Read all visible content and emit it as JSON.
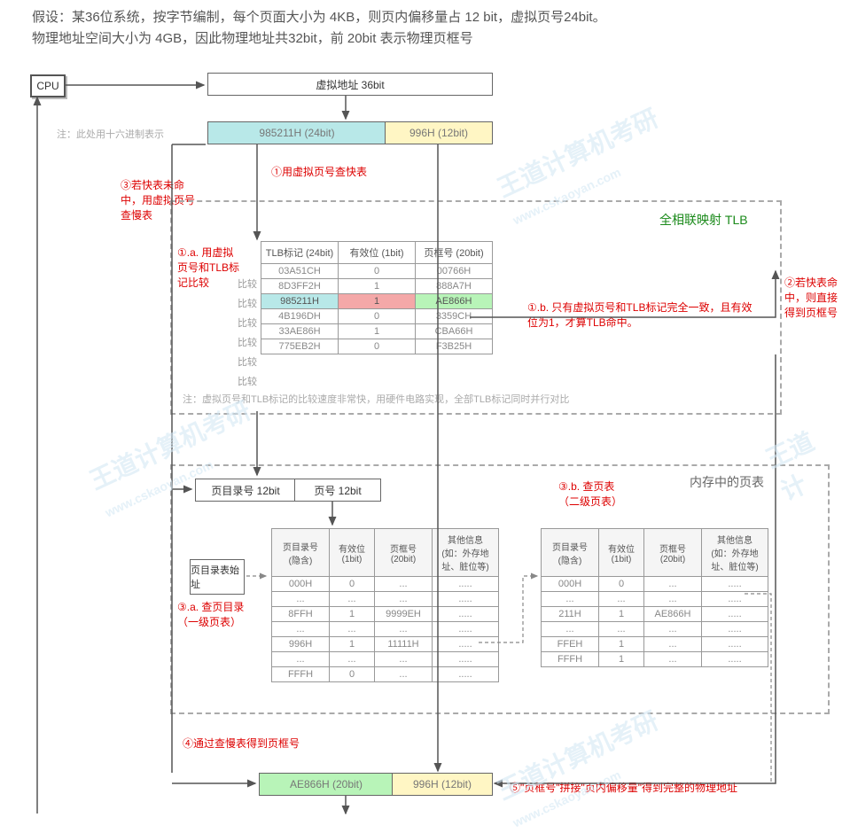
{
  "header": {
    "line1": "假设：某36位系统，按字节编制，每个页面大小为 4KB，则页内偏移量占 12 bit，虚拟页号24bit。",
    "line2": "物理地址空间大小为 4GB，因此物理地址共32bit，前 20bit 表示物理页框号"
  },
  "cpu": "CPU",
  "vaddr": {
    "title": "虚拟地址 36bit",
    "note": "注：此处用十六进制表示",
    "high": "985211H (24bit)",
    "low": "996H (12bit)"
  },
  "steps": {
    "s1": "①用虚拟页号查快表",
    "s1a": "①.a. 用虚拟页号和TLB标记比较",
    "s1b": "①.b. 只有虚拟页号和TLB标记完全一致，且有效位为1，才算TLB命中。",
    "s2": "②若快表命中，则直接得到页框号",
    "s3": "③若快表未命中，用虚拟页号查慢表",
    "s3a": "③.a. 查页目录（一级页表）",
    "s3b": "③.b. 查页表（二级页表）",
    "s4": "④通过查慢表得到页框号",
    "s5": "⑤\"页框号\"拼接\"页内偏移量\"得到完整的物理地址"
  },
  "tlb": {
    "title": "全相联映射 TLB",
    "compare": "比较",
    "headers": [
      "TLB标记 (24bit)",
      "有效位 (1bit)",
      "页框号 (20bit)"
    ],
    "rows": [
      [
        "03A51CH",
        "0",
        "00766H"
      ],
      [
        "8D3FF2H",
        "1",
        "888A7H"
      ],
      [
        "985211H",
        "1",
        "AE866H"
      ],
      [
        "4B196DH",
        "0",
        "3359CH"
      ],
      [
        "33AE86H",
        "1",
        "CBA66H"
      ],
      [
        "775EB2H",
        "0",
        "F3B25H"
      ]
    ],
    "hit_row": 2,
    "hit_colors": {
      "tag": "#b8e8e8",
      "valid": "#f4a8a8",
      "frame": "#b8f4b8"
    },
    "footnote": "注：虚拟页号和TLB标记的比较速度非常快，用硬件电路实现，全部TLB标记同时并行对比"
  },
  "slow": {
    "split_high": "页目录号 12bit",
    "split_low": "页号 12bit",
    "start": "页目录表始址",
    "title": "内存中的页表",
    "headers": [
      "页目录号 (隐含)",
      "有效位 (1bit)",
      "页框号 (20bit)",
      "其他信息 (如：外存地址、脏位等)"
    ],
    "dir_rows": [
      [
        "000H",
        "0",
        "...",
        "....."
      ],
      [
        "...",
        "...",
        "...",
        "....."
      ],
      [
        "8FFH",
        "1",
        "9999EH",
        "....."
      ],
      [
        "...",
        "...",
        "...",
        "....."
      ],
      [
        "996H",
        "1",
        "11111H",
        "....."
      ],
      [
        "...",
        "...",
        "...",
        "....."
      ],
      [
        "FFFH",
        "0",
        "...",
        "....."
      ]
    ],
    "pt_rows": [
      [
        "000H",
        "0",
        "...",
        "....."
      ],
      [
        "...",
        "...",
        "...",
        "....."
      ],
      [
        "211H",
        "1",
        "AE866H",
        "....."
      ],
      [
        "...",
        "...",
        "...",
        "....."
      ],
      [
        "FFEH",
        "1",
        "...",
        "....."
      ],
      [
        "FFFH",
        "1",
        "...",
        "....."
      ]
    ]
  },
  "paddr": {
    "high": "AE866H (20bit)",
    "low": "996H (12bit)"
  },
  "colors": {
    "cyan": "#b8e8e8",
    "yellow": "#fff6c4",
    "green": "#b8f4b8"
  }
}
